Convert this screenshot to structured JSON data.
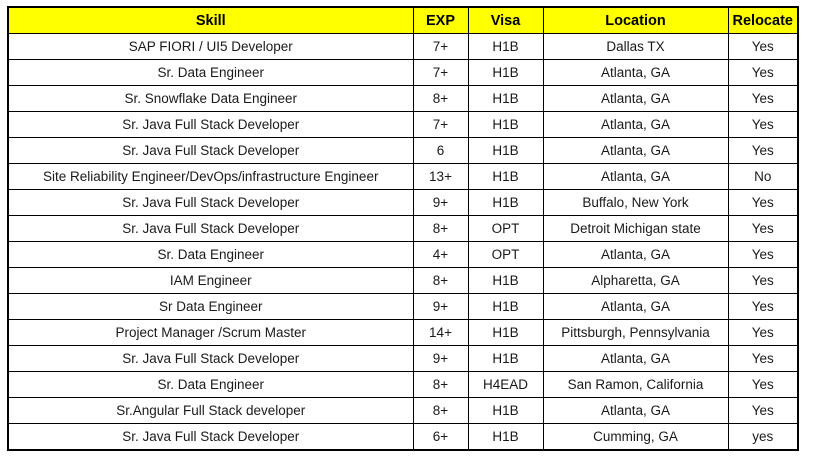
{
  "colors": {
    "header_bg": "#FFFF00",
    "header_text": "#000000",
    "border": "#000000",
    "cell_text": "#1A1A1A",
    "page_bg": "#FFFFFF"
  },
  "columns": {
    "skill": "Skill",
    "exp": "EXP",
    "visa": "Visa",
    "location": "Location",
    "relocate": "Relocate"
  },
  "rows": [
    {
      "skill": "SAP FIORI / UI5 Developer",
      "exp": "7+",
      "visa": "H1B",
      "location": "Dallas TX",
      "relocate": "Yes"
    },
    {
      "skill": "Sr. Data Engineer",
      "exp": "7+",
      "visa": "H1B",
      "location": "Atlanta, GA",
      "relocate": "Yes"
    },
    {
      "skill": "Sr. Snowflake Data Engineer",
      "exp": "8+",
      "visa": "H1B",
      "location": "Atlanta, GA",
      "relocate": "Yes"
    },
    {
      "skill": "Sr. Java Full Stack Developer",
      "exp": "7+",
      "visa": "H1B",
      "location": "Atlanta, GA",
      "relocate": "Yes"
    },
    {
      "skill": "Sr. Java Full Stack Developer",
      "exp": "6",
      "visa": "H1B",
      "location": "Atlanta, GA",
      "relocate": "Yes"
    },
    {
      "skill": "Site Reliability Engineer/DevOps/infrastructure Engineer",
      "exp": "13+",
      "visa": "H1B",
      "location": "Atlanta, GA",
      "relocate": "No"
    },
    {
      "skill": "Sr. Java Full Stack Developer",
      "exp": "9+",
      "visa": "H1B",
      "location": "Buffalo, New York",
      "relocate": "Yes"
    },
    {
      "skill": "Sr. Java Full Stack Developer",
      "exp": "8+",
      "visa": "OPT",
      "location": "Detroit Michigan state",
      "relocate": "Yes"
    },
    {
      "skill": "Sr. Data Engineer",
      "exp": "4+",
      "visa": "OPT",
      "location": "Atlanta, GA",
      "relocate": "Yes"
    },
    {
      "skill": "IAM Engineer",
      "exp": "8+",
      "visa": "H1B",
      "location": "Alpharetta, GA",
      "relocate": "Yes"
    },
    {
      "skill": "Sr Data Engineer",
      "exp": "9+",
      "visa": "H1B",
      "location": "Atlanta, GA",
      "relocate": "Yes"
    },
    {
      "skill": "Project Manager /Scrum Master",
      "exp": "14+",
      "visa": "H1B",
      "location": "Pittsburgh, Pennsylvania",
      "relocate": "Yes"
    },
    {
      "skill": "Sr. Java Full Stack Developer",
      "exp": "9+",
      "visa": "H1B",
      "location": "Atlanta, GA",
      "relocate": "Yes"
    },
    {
      "skill": "Sr. Data Engineer",
      "exp": "8+",
      "visa": "H4EAD",
      "location": "San Ramon, California",
      "relocate": "Yes"
    },
    {
      "skill": "Sr.Angular Full Stack developer",
      "exp": "8+",
      "visa": "H1B",
      "location": "Atlanta, GA",
      "relocate": "Yes"
    },
    {
      "skill": "Sr. Java Full Stack Developer",
      "exp": "6+",
      "visa": "H1B",
      "location": "Cumming, GA",
      "relocate": "yes"
    }
  ]
}
